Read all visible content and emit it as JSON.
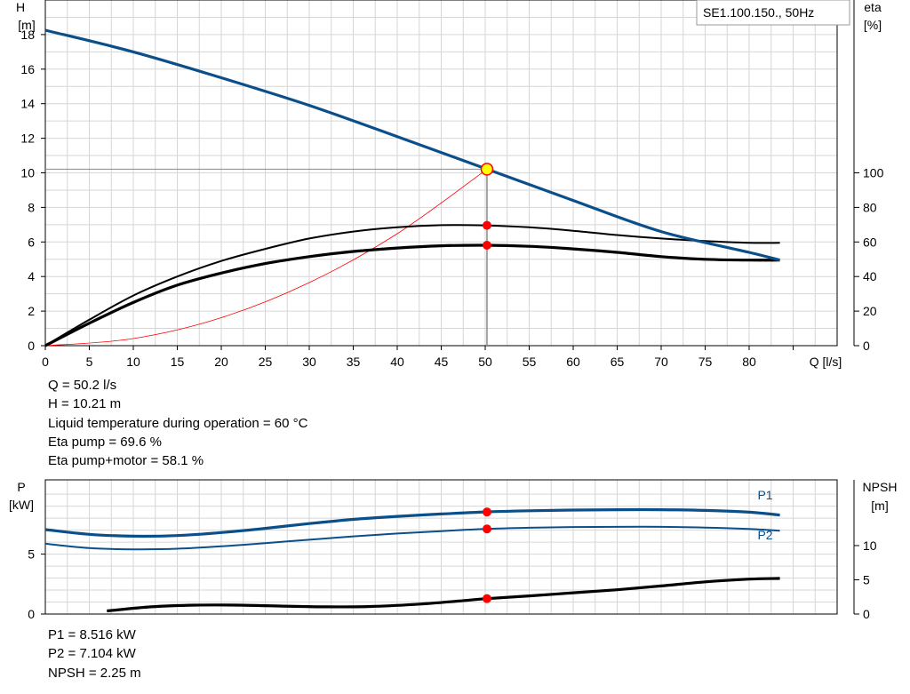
{
  "chart_data": [
    {
      "type": "line",
      "legend_box": "SE1.100.150., 50Hz",
      "y_left": {
        "label_line1": "H",
        "label_line2": "[m]",
        "ticks": [
          0,
          2,
          4,
          6,
          8,
          10,
          12,
          14,
          16,
          18
        ],
        "range": [
          0,
          20
        ]
      },
      "y_right": {
        "label_line1": "eta",
        "label_line2": "[%]",
        "ticks": [
          0,
          20,
          40,
          60,
          80,
          100
        ],
        "range": [
          0,
          200
        ]
      },
      "x": {
        "label": "Q [l/s]",
        "ticks": [
          0,
          5,
          10,
          15,
          20,
          25,
          30,
          35,
          40,
          45,
          50,
          55,
          60,
          65,
          70,
          75,
          80
        ],
        "range": [
          0,
          90
        ]
      },
      "grid": true,
      "series": [
        {
          "key": "H",
          "axis": "left",
          "color": "#0b4f8a",
          "width": 3.2,
          "x": [
            0,
            10,
            20,
            30,
            40,
            50,
            60,
            70,
            80,
            83.5
          ],
          "y": [
            18.25,
            17.0,
            15.5,
            13.9,
            12.1,
            10.25,
            8.4,
            6.6,
            5.4,
            4.95
          ]
        },
        {
          "key": "eta_pump",
          "axis": "right",
          "color": "#000000",
          "width": 2,
          "x": [
            0,
            5,
            10,
            15,
            20,
            25,
            30,
            35,
            40,
            45,
            50,
            55,
            60,
            65,
            70,
            75,
            80,
            83.5
          ],
          "y": [
            0,
            15,
            29,
            40,
            49,
            56,
            62,
            66,
            68.5,
            69.7,
            69.6,
            68.5,
            66.5,
            64,
            62,
            60.5,
            59.5,
            59.5
          ]
        },
        {
          "key": "eta_pump_motor",
          "axis": "right",
          "color": "#000000",
          "width": 3.2,
          "x": [
            0,
            5,
            10,
            15,
            20,
            25,
            30,
            35,
            40,
            45,
            50,
            55,
            60,
            65,
            70,
            75,
            80,
            83.5
          ],
          "y": [
            0,
            13,
            25,
            35,
            42,
            47.5,
            51.5,
            54.5,
            56.5,
            57.8,
            58.1,
            57.5,
            56,
            54,
            51.5,
            50,
            49.5,
            49.5
          ]
        },
        {
          "key": "system_curve",
          "axis": "left",
          "color": "#ff0000",
          "width": 0.8,
          "x": [
            0,
            10,
            20,
            30,
            40,
            50.2
          ],
          "y": [
            0,
            0.41,
            1.62,
            3.65,
            6.48,
            10.21
          ]
        }
      ],
      "operating_point": {
        "x": 50.2,
        "h": 10.21,
        "eta_pump": 69.6,
        "eta_total": 58.1
      },
      "info": [
        "Q = 50.2 l/s",
        "H = 10.21 m",
        "Liquid temperature during operation = 60 °C",
        "Eta pump = 69.6 %",
        "Eta pump+motor = 58.1 %"
      ]
    },
    {
      "type": "line",
      "y_left": {
        "label_line1": "P",
        "label_line2": "[kW]",
        "ticks": [
          0,
          5
        ],
        "range": [
          0,
          11.2
        ]
      },
      "y_right": {
        "label_line1": "NPSH",
        "label_line2": "[m]",
        "ticks": [
          0,
          5,
          10
        ],
        "range": [
          0,
          19.6
        ]
      },
      "x": {
        "range": [
          0,
          90
        ]
      },
      "grid": true,
      "series": [
        {
          "key": "P1",
          "name": "P1",
          "axis": "left",
          "color": "#0b4f8a",
          "width": 3.2,
          "x": [
            0,
            5,
            10,
            15,
            20,
            25,
            30,
            35,
            40,
            45,
            50,
            55,
            60,
            65,
            70,
            75,
            80,
            83.5
          ],
          "y": [
            7.05,
            6.65,
            6.5,
            6.55,
            6.8,
            7.15,
            7.55,
            7.9,
            8.15,
            8.35,
            8.52,
            8.62,
            8.68,
            8.71,
            8.71,
            8.65,
            8.5,
            8.26
          ]
        },
        {
          "key": "P2",
          "name": "P2",
          "axis": "left",
          "color": "#0b4f8a",
          "width": 2,
          "x": [
            0,
            5,
            10,
            15,
            20,
            25,
            30,
            35,
            40,
            45,
            50,
            55,
            60,
            65,
            70,
            75,
            80,
            83.5
          ],
          "y": [
            5.87,
            5.5,
            5.4,
            5.45,
            5.65,
            5.92,
            6.2,
            6.48,
            6.72,
            6.92,
            7.1,
            7.2,
            7.26,
            7.28,
            7.28,
            7.22,
            7.1,
            6.95
          ]
        },
        {
          "key": "NPSH",
          "axis": "right",
          "color": "#000000",
          "width": 3.2,
          "x": [
            7,
            12,
            17,
            22,
            27,
            32,
            37,
            42,
            47,
            50.2,
            55,
            60,
            65,
            70,
            75,
            80,
            83.5
          ],
          "y": [
            0.45,
            1.05,
            1.3,
            1.3,
            1.15,
            1.05,
            1.1,
            1.4,
            1.9,
            2.25,
            2.65,
            3.1,
            3.55,
            4.1,
            4.7,
            5.1,
            5.2
          ]
        }
      ],
      "operating_point": {
        "x": 50.2,
        "P1": 8.516,
        "P2": 7.104,
        "NPSH": 2.25
      },
      "info": [
        "P1 = 8.516 kW",
        "P2 = 7.104 kW",
        "NPSH = 2.25 m"
      ]
    }
  ]
}
